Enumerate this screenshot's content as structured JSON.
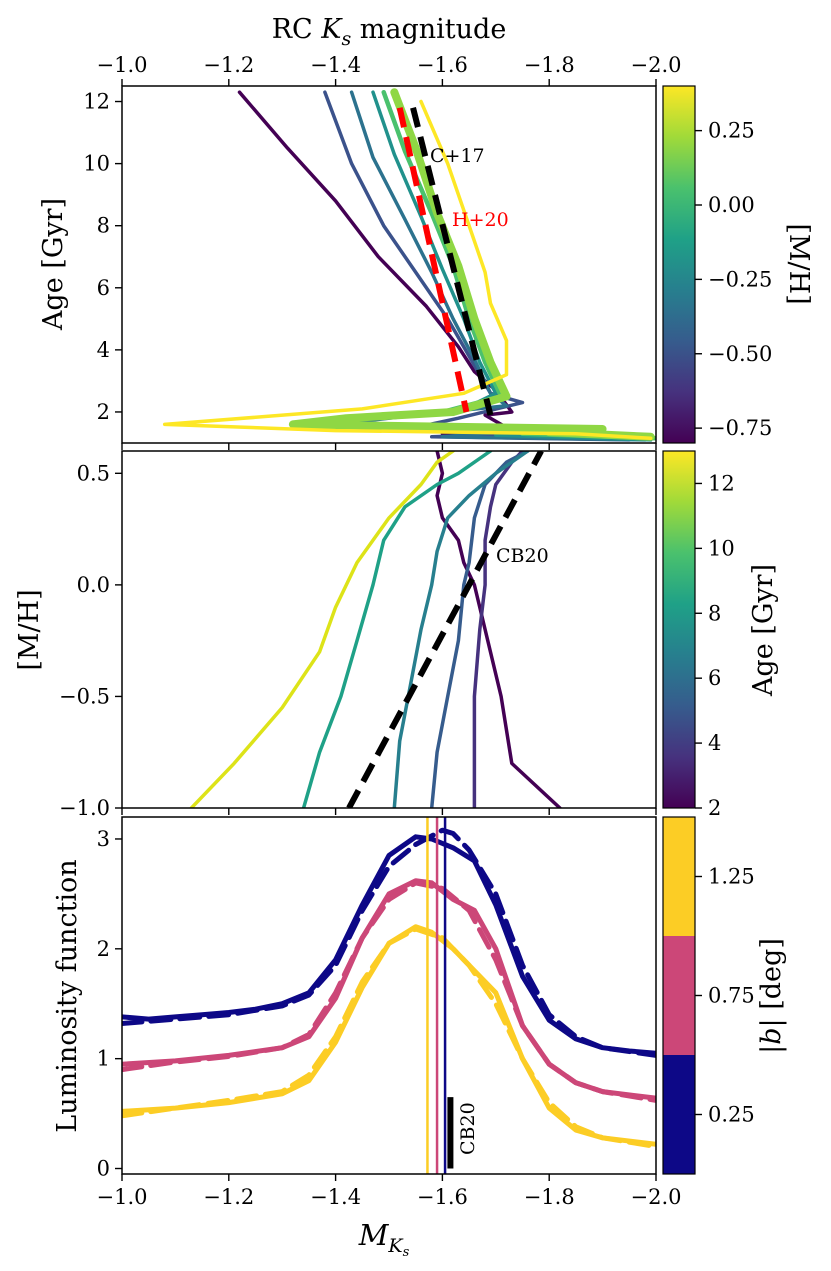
{
  "chart_data": [
    {
      "type": "line",
      "panel": "top",
      "xlabel": "",
      "top_xlabel": "RC K_s magnitude",
      "top_xlabel_prefix": "RC ",
      "top_xlabel_symbol": "K",
      "top_xlabel_sub": "s",
      "top_xlabel_suffix": " magnitude",
      "ylabel": "Age [Gyr]",
      "xlim": [
        -1.0,
        -2.0
      ],
      "ylim": [
        1.0,
        12.5
      ],
      "x_ticks": [
        -1.0,
        -1.2,
        -1.4,
        -1.6,
        -1.8,
        -2.0
      ],
      "x_tick_labels": [
        "−1.0",
        "−1.2",
        "−1.4",
        "−1.6",
        "−1.8",
        "−2.0"
      ],
      "y_ticks": [
        2,
        4,
        6,
        8,
        10,
        12
      ],
      "y_tick_labels": [
        "2",
        "4",
        "6",
        "8",
        "10",
        "12"
      ],
      "colorbar": {
        "label": "[M/H]",
        "range": [
          -0.8,
          0.4
        ],
        "colors": [
          "#440154",
          "#46327e",
          "#365c8d",
          "#277f8e",
          "#1fa187",
          "#4ac16d",
          "#a0da39",
          "#fde725"
        ],
        "ticks": [
          -0.75,
          -0.5,
          -0.25,
          0.0,
          0.25
        ],
        "tick_labels": [
          "−0.75",
          "−0.50",
          "−0.25",
          "0.00",
          "0.25"
        ]
      },
      "series": [
        {
          "name": "[M/H]=-0.75",
          "color": "#440154",
          "width": 3.5,
          "x": [
            -1.22,
            -1.31,
            -1.4,
            -1.48,
            -1.57,
            -1.63,
            -1.66,
            -1.7,
            -1.73,
            -1.68,
            -1.72,
            -1.6,
            -1.75,
            -1.97
          ],
          "y": [
            12.3,
            10.5,
            8.8,
            7.0,
            5.4,
            4.1,
            3.3,
            2.7,
            2.0,
            1.9,
            1.5,
            1.3,
            1.25,
            1.15
          ]
        },
        {
          "name": "[M/H]=-0.50",
          "color": "#3b528b",
          "width": 3.5,
          "x": [
            -1.38,
            -1.43,
            -1.49,
            -1.55,
            -1.61,
            -1.66,
            -1.69,
            -1.75,
            -1.63,
            -1.55,
            -1.75,
            -1.58,
            -1.95
          ],
          "y": [
            12.3,
            10.0,
            8.0,
            6.5,
            5.0,
            3.5,
            2.6,
            2.3,
            1.8,
            1.5,
            1.3,
            1.2,
            1.1
          ]
        },
        {
          "name": "[M/H]=-0.25",
          "color": "#2c728e",
          "width": 3.5,
          "x": [
            -1.43,
            -1.47,
            -1.53,
            -1.58,
            -1.62,
            -1.66,
            -1.69,
            -1.72,
            -1.55,
            -1.4,
            -1.75,
            -1.6,
            -1.98
          ],
          "y": [
            12.3,
            10.2,
            8.2,
            6.5,
            5.0,
            3.7,
            2.6,
            2.2,
            1.9,
            1.6,
            1.4,
            1.2,
            1.1
          ]
        },
        {
          "name": "[M/H]=0.00",
          "color": "#21918c",
          "width": 3.5,
          "x": [
            -1.47,
            -1.51,
            -1.56,
            -1.6,
            -1.64,
            -1.67,
            -1.7,
            -1.64,
            -1.48,
            -1.35,
            -1.8,
            -1.7,
            -1.99
          ],
          "y": [
            12.3,
            10.3,
            8.3,
            6.6,
            5.0,
            3.6,
            2.6,
            2.1,
            1.8,
            1.6,
            1.4,
            1.25,
            1.1
          ]
        },
        {
          "name": "[M/H]=0.10",
          "color": "#4ac16d",
          "width": 4.5,
          "x": [
            -1.49,
            -1.53,
            -1.58,
            -1.62,
            -1.65,
            -1.68,
            -1.71,
            -1.6,
            -1.45,
            -1.33,
            -1.85,
            -1.75,
            -2.0
          ],
          "y": [
            12.3,
            10.4,
            8.4,
            6.7,
            5.0,
            3.6,
            2.5,
            2.0,
            1.8,
            1.55,
            1.4,
            1.3,
            1.15
          ]
        },
        {
          "name": "[M/H]=0.25",
          "color": "#8fd744",
          "width": 8,
          "x": [
            -1.51,
            -1.55,
            -1.59,
            -1.63,
            -1.66,
            -1.69,
            -1.72,
            -1.62,
            -1.42,
            -1.32,
            -1.9,
            -1.8,
            -1.99
          ],
          "y": [
            12.3,
            10.5,
            8.4,
            6.7,
            5.0,
            3.6,
            2.5,
            2.0,
            1.8,
            1.6,
            1.45,
            1.35,
            1.2
          ]
        },
        {
          "name": "[M/H]=0.40",
          "color": "#fde725",
          "width": 3.5,
          "x": [
            -1.56,
            -1.61,
            -1.65,
            -1.68,
            -1.69,
            -1.72,
            -1.72,
            -1.64,
            -1.45,
            -1.08,
            -1.4,
            -1.85,
            -1.99
          ],
          "y": [
            12.0,
            10.0,
            8.0,
            6.5,
            5.5,
            4.3,
            3.2,
            2.6,
            2.1,
            1.6,
            1.4,
            1.3,
            1.15
          ]
        }
      ],
      "reference_lines": [
        {
          "name": "C+17",
          "color": "#000000",
          "dash": true,
          "x": [
            -1.545,
            -1.69
          ],
          "y": [
            11.8,
            1.9
          ]
        },
        {
          "name": "H+20",
          "color": "#ff0000",
          "dash": true,
          "x": [
            -1.52,
            -1.645
          ],
          "y": [
            11.8,
            2.0
          ]
        }
      ],
      "annotations": [
        "C+17",
        "H+20"
      ]
    },
    {
      "type": "line",
      "panel": "middle",
      "xlabel": "",
      "ylabel": "[M/H]",
      "xlim": [
        -1.0,
        -2.0
      ],
      "ylim": [
        -1.0,
        0.6
      ],
      "x_ticks": [
        -1.0,
        -1.2,
        -1.4,
        -1.6,
        -1.8,
        -2.0
      ],
      "y_ticks": [
        -1.0,
        -0.5,
        0.0,
        0.5
      ],
      "y_tick_labels": [
        "−1.0",
        "−0.5",
        "0.0",
        "0.5"
      ],
      "colorbar": {
        "label": "Age [Gyr]",
        "range": [
          2,
          13
        ],
        "colors": [
          "#440154",
          "#46327e",
          "#365c8d",
          "#277f8e",
          "#1fa187",
          "#4ac16d",
          "#a0da39",
          "#fde725"
        ],
        "ticks": [
          2,
          4,
          6,
          8,
          10,
          12
        ],
        "tick_labels": [
          "2",
          "4",
          "6",
          "8",
          "10",
          "12"
        ]
      },
      "series": [
        {
          "name": "Age=2",
          "color": "#440154",
          "x": [
            -1.82,
            -1.73,
            -1.71,
            -1.68,
            -1.66,
            -1.64,
            -1.63,
            -1.6,
            -1.59,
            -1.6,
            -1.59
          ],
          "y": [
            -1.0,
            -0.8,
            -0.5,
            -0.2,
            0.0,
            0.1,
            0.2,
            0.3,
            0.4,
            0.5,
            0.6
          ]
        },
        {
          "name": "Age=3",
          "color": "#46327e",
          "x": [
            -1.66,
            -1.66,
            -1.66,
            -1.67,
            -1.68,
            -1.68,
            -1.69,
            -1.7,
            -1.73,
            -1.75
          ],
          "y": [
            -1.0,
            -0.8,
            -0.5,
            -0.2,
            0.0,
            0.2,
            0.35,
            0.45,
            0.55,
            0.6
          ]
        },
        {
          "name": "Age=5",
          "color": "#365c8d",
          "x": [
            -1.58,
            -1.59,
            -1.61,
            -1.63,
            -1.64,
            -1.65,
            -1.66,
            -1.68,
            -1.72,
            -1.76
          ],
          "y": [
            -1.0,
            -0.75,
            -0.5,
            -0.25,
            0.0,
            0.1,
            0.3,
            0.45,
            0.55,
            0.6
          ]
        },
        {
          "name": "Age=7",
          "color": "#277f8e",
          "x": [
            -1.51,
            -1.52,
            -1.54,
            -1.56,
            -1.58,
            -1.59,
            -1.61,
            -1.65,
            -1.7,
            -1.76
          ],
          "y": [
            -1.0,
            -0.7,
            -0.45,
            -0.2,
            0.0,
            0.15,
            0.3,
            0.4,
            0.5,
            0.6
          ]
        },
        {
          "name": "Age=9",
          "color": "#1fa187",
          "x": [
            -1.34,
            -1.37,
            -1.41,
            -1.44,
            -1.47,
            -1.49,
            -1.53,
            -1.59,
            -1.63,
            -1.69
          ],
          "y": [
            -1.0,
            -0.75,
            -0.5,
            -0.25,
            0.0,
            0.2,
            0.35,
            0.45,
            0.5,
            0.6
          ]
        },
        {
          "name": "Age=12.5",
          "color": "#dde318",
          "x": [
            -1.13,
            -1.21,
            -1.3,
            -1.37,
            -1.4,
            -1.44,
            -1.5,
            -1.56,
            -1.59,
            -1.62
          ],
          "y": [
            -1.0,
            -0.8,
            -0.55,
            -0.3,
            -0.1,
            0.1,
            0.3,
            0.45,
            0.55,
            0.6
          ]
        }
      ],
      "reference_lines": [
        {
          "name": "CB20",
          "color": "#000000",
          "dash": true,
          "x": [
            -1.425,
            -1.785
          ],
          "y": [
            -1.0,
            0.6
          ]
        }
      ],
      "annotations": [
        "CB20"
      ]
    },
    {
      "type": "line",
      "panel": "bottom",
      "xlabel": "M_Ks",
      "xlabel_symbol": "M",
      "xlabel_sub": "K",
      "xlabel_subsub": "s",
      "ylabel": "Luminosity function",
      "xlim": [
        -1.0,
        -2.0
      ],
      "ylim": [
        -0.05,
        3.2
      ],
      "x_ticks": [
        -1.0,
        -1.2,
        -1.4,
        -1.6,
        -1.8,
        -2.0
      ],
      "x_tick_labels": [
        "−1.0",
        "−1.2",
        "−1.4",
        "−1.6",
        "−1.8",
        "−2.0"
      ],
      "y_ticks": [
        0,
        1,
        2,
        3
      ],
      "y_tick_labels": [
        "0",
        "1",
        "2",
        "3"
      ],
      "colorbar": {
        "label": "|b| [deg]",
        "label_bar": "|",
        "label_symbol": "b",
        "label_unit": "| [deg]",
        "bands": [
          {
            "color": "#0d0887",
            "range": [
              0.0,
              0.5
            ]
          },
          {
            "color": "#cc4778",
            "range": [
              0.5,
              1.0
            ]
          },
          {
            "color": "#fccd25",
            "range": [
              1.0,
              1.5
            ]
          }
        ],
        "range": [
          0.0,
          1.5
        ],
        "ticks": [
          0.25,
          0.75,
          1.25
        ],
        "tick_labels": [
          "0.25",
          "0.75",
          "1.25"
        ]
      },
      "series": [
        {
          "name": "|b|=0.25 solid",
          "color": "#0d0887",
          "dash": false,
          "x": [
            -1.0,
            -1.05,
            -1.1,
            -1.15,
            -1.2,
            -1.25,
            -1.3,
            -1.35,
            -1.4,
            -1.45,
            -1.5,
            -1.55,
            -1.58,
            -1.62,
            -1.66,
            -1.7,
            -1.75,
            -1.8,
            -1.85,
            -1.9,
            -1.95,
            -2.0
          ],
          "y": [
            1.38,
            1.36,
            1.38,
            1.4,
            1.42,
            1.45,
            1.5,
            1.6,
            1.9,
            2.4,
            2.85,
            3.02,
            3.0,
            2.92,
            2.8,
            2.4,
            1.75,
            1.35,
            1.18,
            1.1,
            1.07,
            1.05
          ]
        },
        {
          "name": "|b|=0.25 model",
          "color": "#0d0887",
          "dash": true,
          "x": [
            -1.0,
            -1.1,
            -1.2,
            -1.3,
            -1.35,
            -1.4,
            -1.45,
            -1.5,
            -1.55,
            -1.6,
            -1.62,
            -1.65,
            -1.7,
            -1.75,
            -1.8,
            -1.85,
            -1.9,
            -2.0
          ],
          "y": [
            1.32,
            1.36,
            1.4,
            1.48,
            1.58,
            1.85,
            2.35,
            2.75,
            2.95,
            3.08,
            3.05,
            2.9,
            2.5,
            1.85,
            1.4,
            1.2,
            1.1,
            1.03
          ]
        },
        {
          "name": "|b|=0.75 solid",
          "color": "#cc4778",
          "dash": false,
          "x": [
            -1.0,
            -1.1,
            -1.2,
            -1.3,
            -1.35,
            -1.4,
            -1.45,
            -1.5,
            -1.55,
            -1.58,
            -1.62,
            -1.66,
            -1.7,
            -1.75,
            -1.8,
            -1.85,
            -1.9,
            -2.0
          ],
          "y": [
            0.95,
            0.98,
            1.03,
            1.1,
            1.2,
            1.55,
            2.1,
            2.5,
            2.62,
            2.6,
            2.45,
            2.35,
            2.0,
            1.3,
            0.95,
            0.78,
            0.7,
            0.64
          ]
        },
        {
          "name": "|b|=0.75 model",
          "color": "#cc4778",
          "dash": true,
          "x": [
            -1.0,
            -1.1,
            -1.2,
            -1.3,
            -1.35,
            -1.4,
            -1.45,
            -1.5,
            -1.55,
            -1.6,
            -1.65,
            -1.7,
            -1.75,
            -1.8,
            -1.85,
            -1.9,
            -2.0
          ],
          "y": [
            0.9,
            0.97,
            1.02,
            1.1,
            1.22,
            1.6,
            2.1,
            2.45,
            2.6,
            2.55,
            2.35,
            1.9,
            1.3,
            0.95,
            0.78,
            0.7,
            0.62
          ]
        },
        {
          "name": "|b|=1.25 solid",
          "color": "#fccd25",
          "dash": false,
          "x": [
            -1.0,
            -1.1,
            -1.2,
            -1.3,
            -1.35,
            -1.4,
            -1.45,
            -1.5,
            -1.55,
            -1.58,
            -1.62,
            -1.66,
            -1.7,
            -1.75,
            -1.8,
            -1.85,
            -1.9,
            -2.0
          ],
          "y": [
            0.52,
            0.55,
            0.6,
            0.68,
            0.8,
            1.15,
            1.65,
            2.05,
            2.2,
            2.15,
            2.0,
            1.8,
            1.6,
            1.0,
            0.55,
            0.35,
            0.28,
            0.22
          ]
        },
        {
          "name": "|b|=1.25 model",
          "color": "#fccd25",
          "dash": true,
          "x": [
            -1.0,
            -1.1,
            -1.2,
            -1.3,
            -1.35,
            -1.4,
            -1.45,
            -1.5,
            -1.55,
            -1.6,
            -1.65,
            -1.7,
            -1.75,
            -1.8,
            -1.85,
            -1.9,
            -2.0
          ],
          "y": [
            0.48,
            0.55,
            0.62,
            0.7,
            0.85,
            1.2,
            1.7,
            2.05,
            2.18,
            2.1,
            1.85,
            1.5,
            1.0,
            0.6,
            0.38,
            0.28,
            0.2
          ]
        }
      ],
      "vertical_lines": [
        {
          "name": "peak |b|=1.25",
          "color": "#fccd25",
          "x": -1.572
        },
        {
          "name": "peak |b|=0.75",
          "color": "#cc4778",
          "x": -1.59
        },
        {
          "name": "peak |b|=0.25",
          "color": "#0d0887",
          "x": -1.605
        }
      ],
      "reference_bar": {
        "name": "CB20",
        "color": "#000000",
        "x": -1.615,
        "y0": 0.0,
        "y1": 0.65
      },
      "annotations": [
        "CB20"
      ]
    }
  ]
}
